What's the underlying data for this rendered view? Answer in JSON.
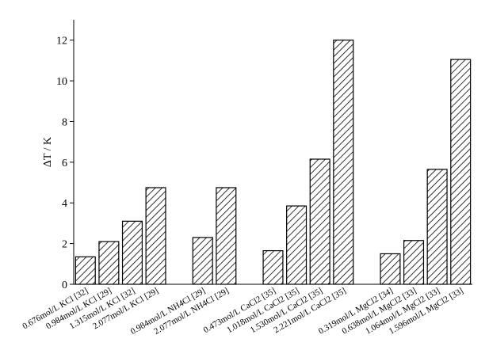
{
  "chart_data": {
    "type": "bar",
    "y_label": "ΔT / K",
    "categories": [
      "0.676mol/L KCl [32]",
      "0.984mol/L KCl [29]",
      "1.315mol/L KCl [32]",
      "2.077mol/L KCl [29]",
      null,
      "0.984mol/L NH4Cl [29]",
      "2.077mol/L NH4Cl [29]",
      null,
      "0.473mol/L CaCl2 [35]",
      "1.018mol/L CaCl2 [35]",
      "1.530mol/L CaCl2 [35]",
      "2.221mol/L CaCl2 [35]",
      null,
      "0.319mol/L MgCl2 [34]",
      "0.638mol/L MgCl2 [33]",
      "1.064mol/L MgCl2 [33]",
      "1.596mol/L MgCl2 [33]"
    ],
    "values": [
      1.35,
      2.1,
      3.1,
      4.75,
      null,
      2.3,
      4.75,
      null,
      1.65,
      3.85,
      6.15,
      12.0,
      null,
      1.5,
      2.15,
      5.65,
      11.05
    ],
    "color": "#000000",
    "ylim": [
      0,
      13
    ],
    "yticks": [
      0,
      2,
      4,
      6,
      8,
      10,
      12
    ]
  }
}
